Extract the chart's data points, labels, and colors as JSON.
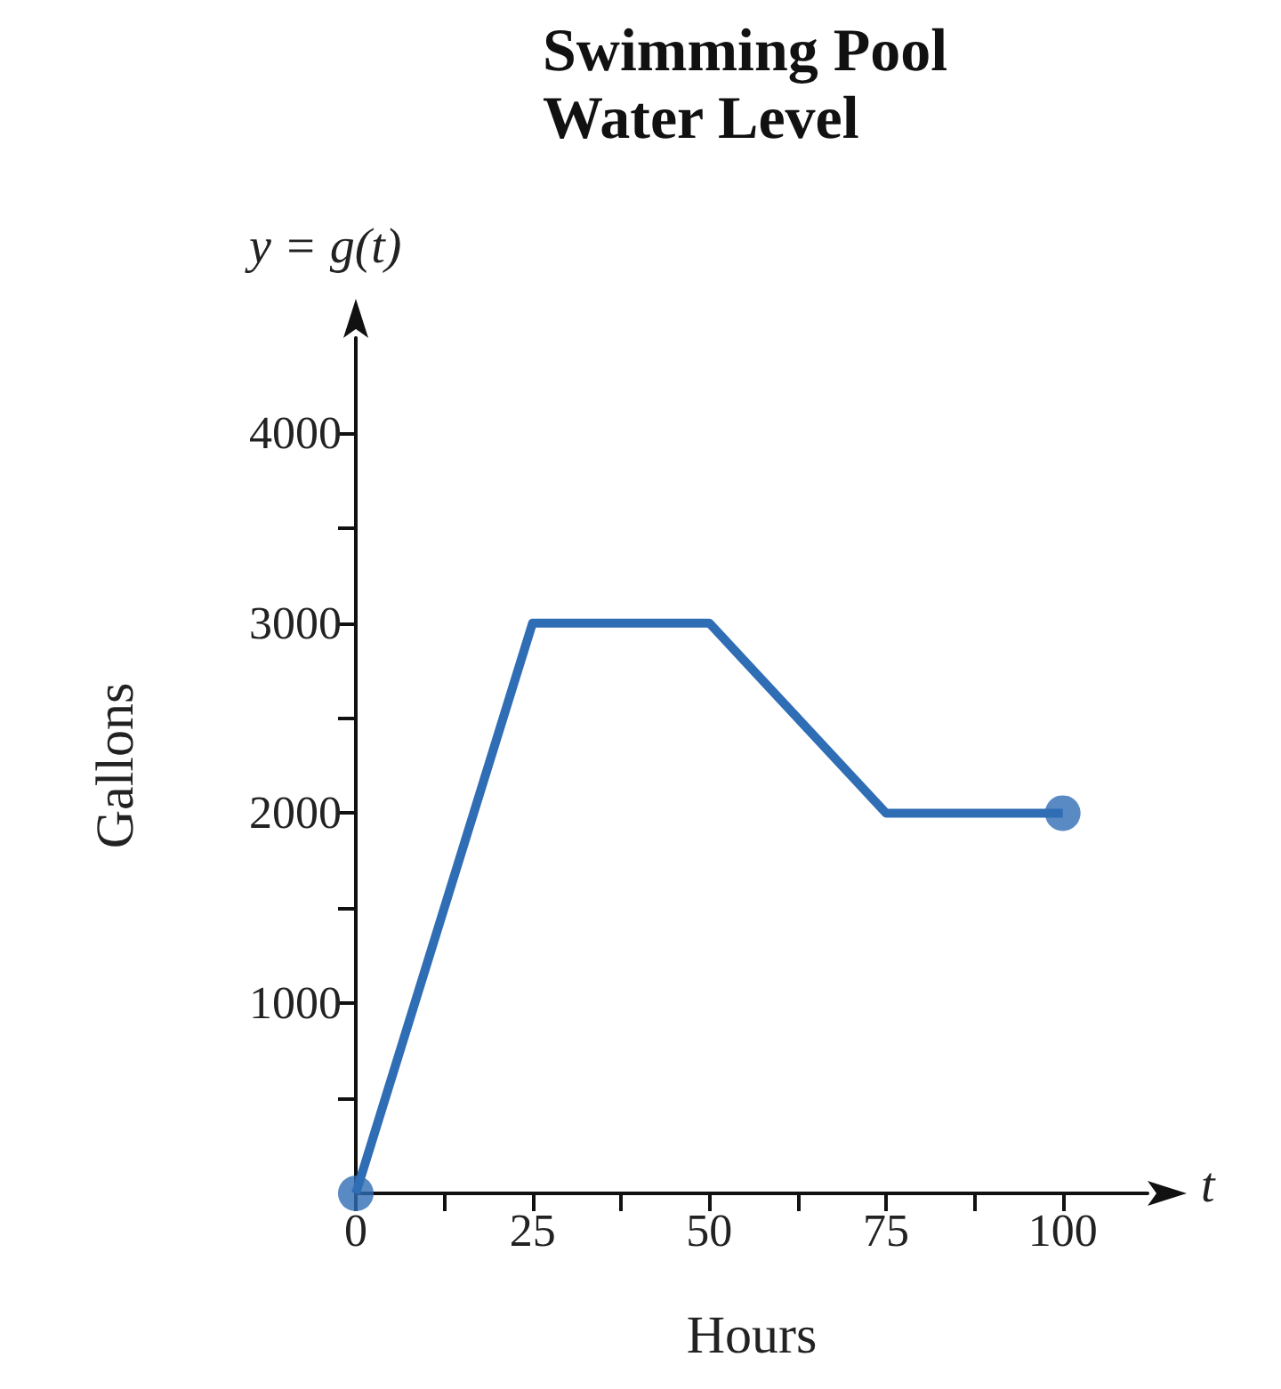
{
  "chart_data": {
    "type": "line",
    "title": "Swimming Pool Water Level",
    "xlabel": "Hours",
    "ylabel": "Gallons",
    "annotations": [
      "y = g(t)",
      "t"
    ],
    "x": [
      0,
      25,
      50,
      75,
      100
    ],
    "series": [
      {
        "color": "#2f6db5",
        "values": [
          0,
          3000,
          3000,
          2000,
          2000
        ]
      },
      {
        "type": "scatter",
        "color": "#2f6db5",
        "x": [
          0,
          100
        ],
        "values": [
          0,
          2000
        ]
      }
    ],
    "xlim": [
      0,
      112
    ],
    "ylim": [
      0,
      4500
    ],
    "xticks": [
      0,
      {
        "value": 12.5,
        "label": null
      },
      25,
      {
        "value": 37.5,
        "label": null
      },
      50,
      {
        "value": 62.5,
        "label": null
      },
      75,
      {
        "value": 87.5,
        "label": null
      },
      100
    ],
    "yticks": [
      {
        "value": 500,
        "label": null
      },
      1000,
      {
        "value": 1500,
        "label": null
      },
      2000,
      {
        "value": 2500,
        "label": null
      },
      3000,
      {
        "value": 3500,
        "label": null
      },
      4000
    ],
    "grid": false,
    "line_style": "solid"
  }
}
